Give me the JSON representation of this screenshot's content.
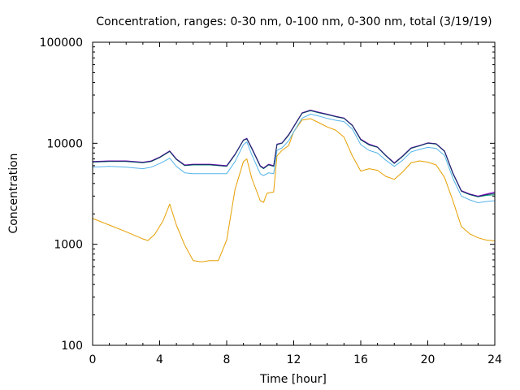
{
  "chart_data": {
    "type": "line",
    "title": "Concentration, ranges: 0-30 nm, 0-100 nm, 0-300 nm, total (3/19/19)",
    "xlabel": "Time [hour]",
    "ylabel": "Concentration",
    "xlim": [
      0,
      24
    ],
    "ylim": [
      100,
      100000
    ],
    "yscale": "log",
    "x_ticks": [
      0,
      4,
      8,
      12,
      16,
      20,
      24
    ],
    "x_tick_labels": [
      "0",
      "4",
      "8",
      "12",
      "16",
      "20",
      "24"
    ],
    "y_ticks": [
      100,
      1000,
      10000,
      100000
    ],
    "y_tick_labels": [
      "100",
      "1000",
      "10000",
      "100000"
    ],
    "grid": false,
    "legend": "none",
    "series": [
      {
        "name": "0-30 nm",
        "color": "#e69f00",
        "x": [
          0,
          1,
          2,
          3,
          3.3,
          3.7,
          4.2,
          4.6,
          5.0,
          5.5,
          6.0,
          6.5,
          7.0,
          7.5,
          8.0,
          8.5,
          9.0,
          9.2,
          9.5,
          10.0,
          10.2,
          10.4,
          10.8,
          11.0,
          11.3,
          11.7,
          12.0,
          12.5,
          13.0,
          13.5,
          14.0,
          14.5,
          15.0,
          15.5,
          16.0,
          16.5,
          17.0,
          17.5,
          18.0,
          18.5,
          19.0,
          19.5,
          20.0,
          20.5,
          21.0,
          21.5,
          22.0,
          22.5,
          23.0,
          23.5,
          24.0
        ],
        "values": [
          1800,
          1550,
          1330,
          1130,
          1090,
          1250,
          1700,
          2500,
          1550,
          980,
          690,
          670,
          690,
          690,
          1100,
          3500,
          6600,
          7000,
          4500,
          2700,
          2600,
          3200,
          3300,
          7500,
          8500,
          9500,
          13000,
          17000,
          17500,
          16000,
          14500,
          13500,
          11500,
          7500,
          5300,
          5600,
          5400,
          4700,
          4400,
          5200,
          6400,
          6700,
          6500,
          6100,
          4600,
          2700,
          1500,
          1270,
          1160,
          1100,
          1080
        ]
      },
      {
        "name": "0-100 nm",
        "color": "#56b4e9",
        "x": [
          0,
          1,
          2,
          3,
          3.5,
          4.0,
          4.6,
          5.0,
          5.5,
          6.0,
          7.0,
          8.0,
          8.5,
          9.0,
          9.2,
          9.5,
          10.0,
          10.2,
          10.5,
          10.8,
          11.0,
          11.3,
          11.7,
          12.0,
          12.5,
          13.0,
          13.5,
          14.0,
          14.5,
          15.0,
          15.5,
          16.0,
          16.5,
          17.0,
          17.5,
          18.0,
          18.5,
          19.0,
          19.5,
          20.0,
          20.5,
          21.0,
          21.5,
          22.0,
          22.5,
          23.0,
          23.5,
          24.0
        ],
        "values": [
          5800,
          5900,
          5800,
          5600,
          5800,
          6300,
          7100,
          5900,
          5100,
          5000,
          5000,
          5000,
          6600,
          9700,
          10300,
          7700,
          5000,
          4800,
          5100,
          5000,
          8500,
          9000,
          10600,
          13000,
          17700,
          19400,
          18600,
          17600,
          16900,
          16400,
          13800,
          9700,
          8500,
          8000,
          6800,
          5900,
          6800,
          8200,
          8700,
          9100,
          8900,
          7600,
          4500,
          3000,
          2750,
          2580,
          2650,
          2700
        ]
      },
      {
        "name": "0-300 nm",
        "color": "#009e73",
        "x": [
          0,
          1,
          2,
          3,
          3.5,
          4.0,
          4.6,
          5.0,
          5.5,
          6.0,
          7.0,
          8.0,
          8.5,
          9.0,
          9.2,
          9.5,
          10.0,
          10.2,
          10.5,
          10.8,
          11.0,
          11.3,
          11.7,
          12.0,
          12.5,
          13.0,
          13.5,
          14.0,
          14.5,
          15.0,
          15.5,
          16.0,
          16.5,
          17.0,
          17.5,
          18.0,
          18.5,
          19.0,
          19.5,
          20.0,
          20.5,
          21.0,
          21.5,
          22.0,
          22.5,
          23.0,
          23.5,
          24.0
        ],
        "values": [
          6500,
          6600,
          6600,
          6400,
          6600,
          7200,
          8300,
          6900,
          6000,
          6100,
          6100,
          5900,
          7700,
          10700,
          11000,
          8800,
          5900,
          5600,
          6100,
          5900,
          9700,
          10000,
          12000,
          14500,
          19800,
          21000,
          20000,
          19200,
          18300,
          17600,
          14900,
          10800,
          9600,
          9100,
          7500,
          6300,
          7400,
          8900,
          9400,
          10000,
          9800,
          8300,
          5000,
          3350,
          3100,
          2950,
          3050,
          3100
        ]
      },
      {
        "name": "total",
        "color": "#9400d3",
        "x": [
          0,
          1,
          2,
          3,
          3.5,
          4.0,
          4.6,
          5.0,
          5.5,
          6.0,
          7.0,
          8.0,
          8.5,
          9.0,
          9.2,
          9.5,
          10.0,
          10.2,
          10.5,
          10.8,
          11.0,
          11.3,
          11.7,
          12.0,
          12.5,
          13.0,
          13.5,
          14.0,
          14.5,
          15.0,
          15.5,
          16.0,
          16.5,
          17.0,
          17.5,
          18.0,
          18.5,
          19.0,
          19.5,
          20.0,
          20.5,
          21.0,
          21.5,
          22.0,
          22.5,
          23.0,
          23.5,
          24.0
        ],
        "values": [
          6600,
          6700,
          6700,
          6500,
          6700,
          7300,
          8400,
          7000,
          6100,
          6200,
          6200,
          6000,
          7800,
          10800,
          11200,
          9000,
          6000,
          5700,
          6200,
          6000,
          9800,
          10100,
          12200,
          14700,
          20000,
          21300,
          20300,
          19400,
          18500,
          17800,
          15100,
          11000,
          9800,
          9200,
          7600,
          6400,
          7500,
          9000,
          9500,
          10100,
          9900,
          8400,
          5100,
          3400,
          3150,
          3000,
          3150,
          3300
        ]
      },
      {
        "name": "total-overlay",
        "color": "#1f2a6b",
        "x": [
          0,
          1,
          2,
          3,
          3.5,
          4.0,
          4.6,
          5.0,
          5.5,
          6.0,
          7.0,
          8.0,
          8.5,
          9.0,
          9.2,
          9.5,
          10.0,
          10.2,
          10.5,
          10.8,
          11.0,
          11.3,
          11.7,
          12.0,
          12.5,
          13.0,
          13.5,
          14.0,
          14.5,
          15.0,
          15.5,
          16.0,
          16.5,
          17.0,
          17.5,
          18.0,
          18.5,
          19.0,
          19.5,
          20.0,
          20.5,
          21.0,
          21.5,
          22.0,
          22.5,
          23.0,
          23.5,
          24.0
        ],
        "values": [
          6550,
          6650,
          6650,
          6450,
          6650,
          7250,
          8350,
          6950,
          6050,
          6150,
          6150,
          5950,
          7750,
          10750,
          11100,
          8900,
          5950,
          5650,
          6150,
          5950,
          9750,
          10050,
          12100,
          14600,
          19900,
          21150,
          20150,
          19300,
          18400,
          17700,
          15000,
          10900,
          9700,
          9150,
          7550,
          6350,
          7450,
          8950,
          9450,
          10050,
          9850,
          8350,
          5050,
          3370,
          3120,
          2970,
          3100,
          3200
        ]
      }
    ]
  }
}
